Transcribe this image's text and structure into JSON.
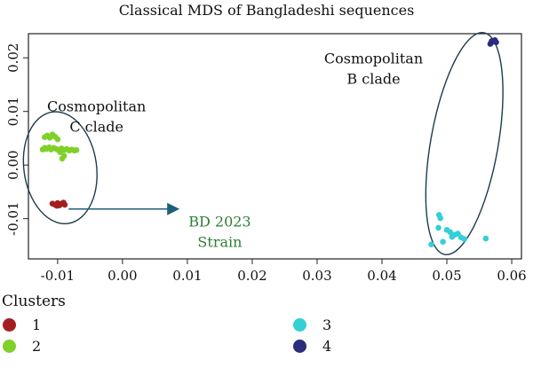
{
  "chart_data": {
    "type": "scatter",
    "title": "Classical MDS of Bangladeshi sequences",
    "xlabel": "",
    "ylabel": "",
    "xlim": [
      -0.0145,
      0.0615
    ],
    "ylim": [
      -0.0175,
      0.0245
    ],
    "x_ticks": [
      -0.01,
      0.0,
      0.01,
      0.02,
      0.03,
      0.04,
      0.05,
      0.06
    ],
    "x_tick_labels": [
      "-0.01",
      "0.00",
      "0.01",
      "0.02",
      "0.03",
      "0.04",
      "0.05",
      "0.06"
    ],
    "y_ticks": [
      -0.01,
      0.0,
      0.01,
      0.02
    ],
    "y_tick_labels": [
      "-0.01",
      "0.00",
      "0.01",
      "0.02"
    ],
    "grid": false,
    "legend_title": "Clusters",
    "legend_placement": "bottom",
    "series": [
      {
        "name": "1",
        "color": "#a31f1f",
        "points": [
          [
            -0.0108,
            -0.0072
          ],
          [
            -0.0104,
            -0.0074
          ],
          [
            -0.01,
            -0.0071
          ],
          [
            -0.0097,
            -0.0075
          ],
          [
            -0.0094,
            -0.0072
          ],
          [
            -0.0091,
            -0.007
          ],
          [
            -0.0089,
            -0.0074
          ],
          [
            -0.0101,
            -0.0076
          ]
        ]
      },
      {
        "name": "2",
        "color": "#7fd12a",
        "points": [
          [
            -0.0123,
            0.0029
          ],
          [
            -0.012,
            0.0032
          ],
          [
            -0.0117,
            0.003
          ],
          [
            -0.0113,
            0.0033
          ],
          [
            -0.011,
            0.0029
          ],
          [
            -0.0106,
            0.0032
          ],
          [
            -0.0102,
            0.003
          ],
          [
            -0.0098,
            0.0027
          ],
          [
            -0.0094,
            0.0031
          ],
          [
            -0.009,
            0.0028
          ],
          [
            -0.0086,
            0.003
          ],
          [
            -0.0082,
            0.0027
          ],
          [
            -0.0078,
            0.0029
          ],
          [
            -0.0074,
            0.0027
          ],
          [
            -0.0071,
            0.0028
          ],
          [
            -0.012,
            0.0052
          ],
          [
            -0.0116,
            0.0055
          ],
          [
            -0.0112,
            0.0051
          ],
          [
            -0.0108,
            0.0057
          ],
          [
            -0.0104,
            0.0053
          ],
          [
            -0.01,
            0.0048
          ],
          [
            -0.0093,
            0.0012
          ],
          [
            -0.009,
            0.0017
          ],
          [
            -0.0096,
            0.0024
          ]
        ]
      },
      {
        "name": "3",
        "color": "#35cfd6",
        "points": [
          [
            0.0488,
            -0.0093
          ],
          [
            0.049,
            -0.0099
          ],
          [
            0.0487,
            -0.0117
          ],
          [
            0.05,
            -0.0121
          ],
          [
            0.0505,
            -0.0125
          ],
          [
            0.0512,
            -0.013
          ],
          [
            0.0517,
            -0.0128
          ],
          [
            0.0522,
            -0.0135
          ],
          [
            0.0527,
            -0.0138
          ],
          [
            0.056,
            -0.0137
          ],
          [
            0.0494,
            -0.0143
          ],
          [
            0.0476,
            -0.0148
          ],
          [
            0.0508,
            -0.0134
          ]
        ]
      },
      {
        "name": "4",
        "color": "#2c2c7c",
        "points": [
          [
            0.0567,
            0.0226
          ],
          [
            0.0571,
            0.023
          ],
          [
            0.0574,
            0.0233
          ],
          [
            0.0569,
            0.0231
          ],
          [
            0.0576,
            0.0229
          ]
        ]
      }
    ],
    "annotations": [
      {
        "text_lines": [
          "Cosmopolitan",
          "C clade"
        ],
        "x": -0.004,
        "y": 0.01,
        "color": "#111111"
      },
      {
        "text_lines": [
          "Cosmopolitan",
          "B clade"
        ],
        "x": 0.0387,
        "y": 0.019,
        "color": "#111111"
      },
      {
        "text_lines": [
          "BD 2023",
          "Strain"
        ],
        "x": 0.015,
        "y": -0.0115,
        "color": "#2e7d32"
      }
    ],
    "ellipses": [
      {
        "cx": -0.0096,
        "cy": -0.0005,
        "rx": 0.0056,
        "ry": 0.0105,
        "rotation": -8
      },
      {
        "cx": 0.0527,
        "cy": 0.004,
        "rx": 0.0052,
        "ry": 0.021,
        "rotation": 10
      }
    ],
    "arrow": {
      "from": [
        -0.0083,
        -0.0082
      ],
      "to": [
        0.0088,
        -0.0082
      ],
      "color": "#1f5f7a"
    }
  }
}
